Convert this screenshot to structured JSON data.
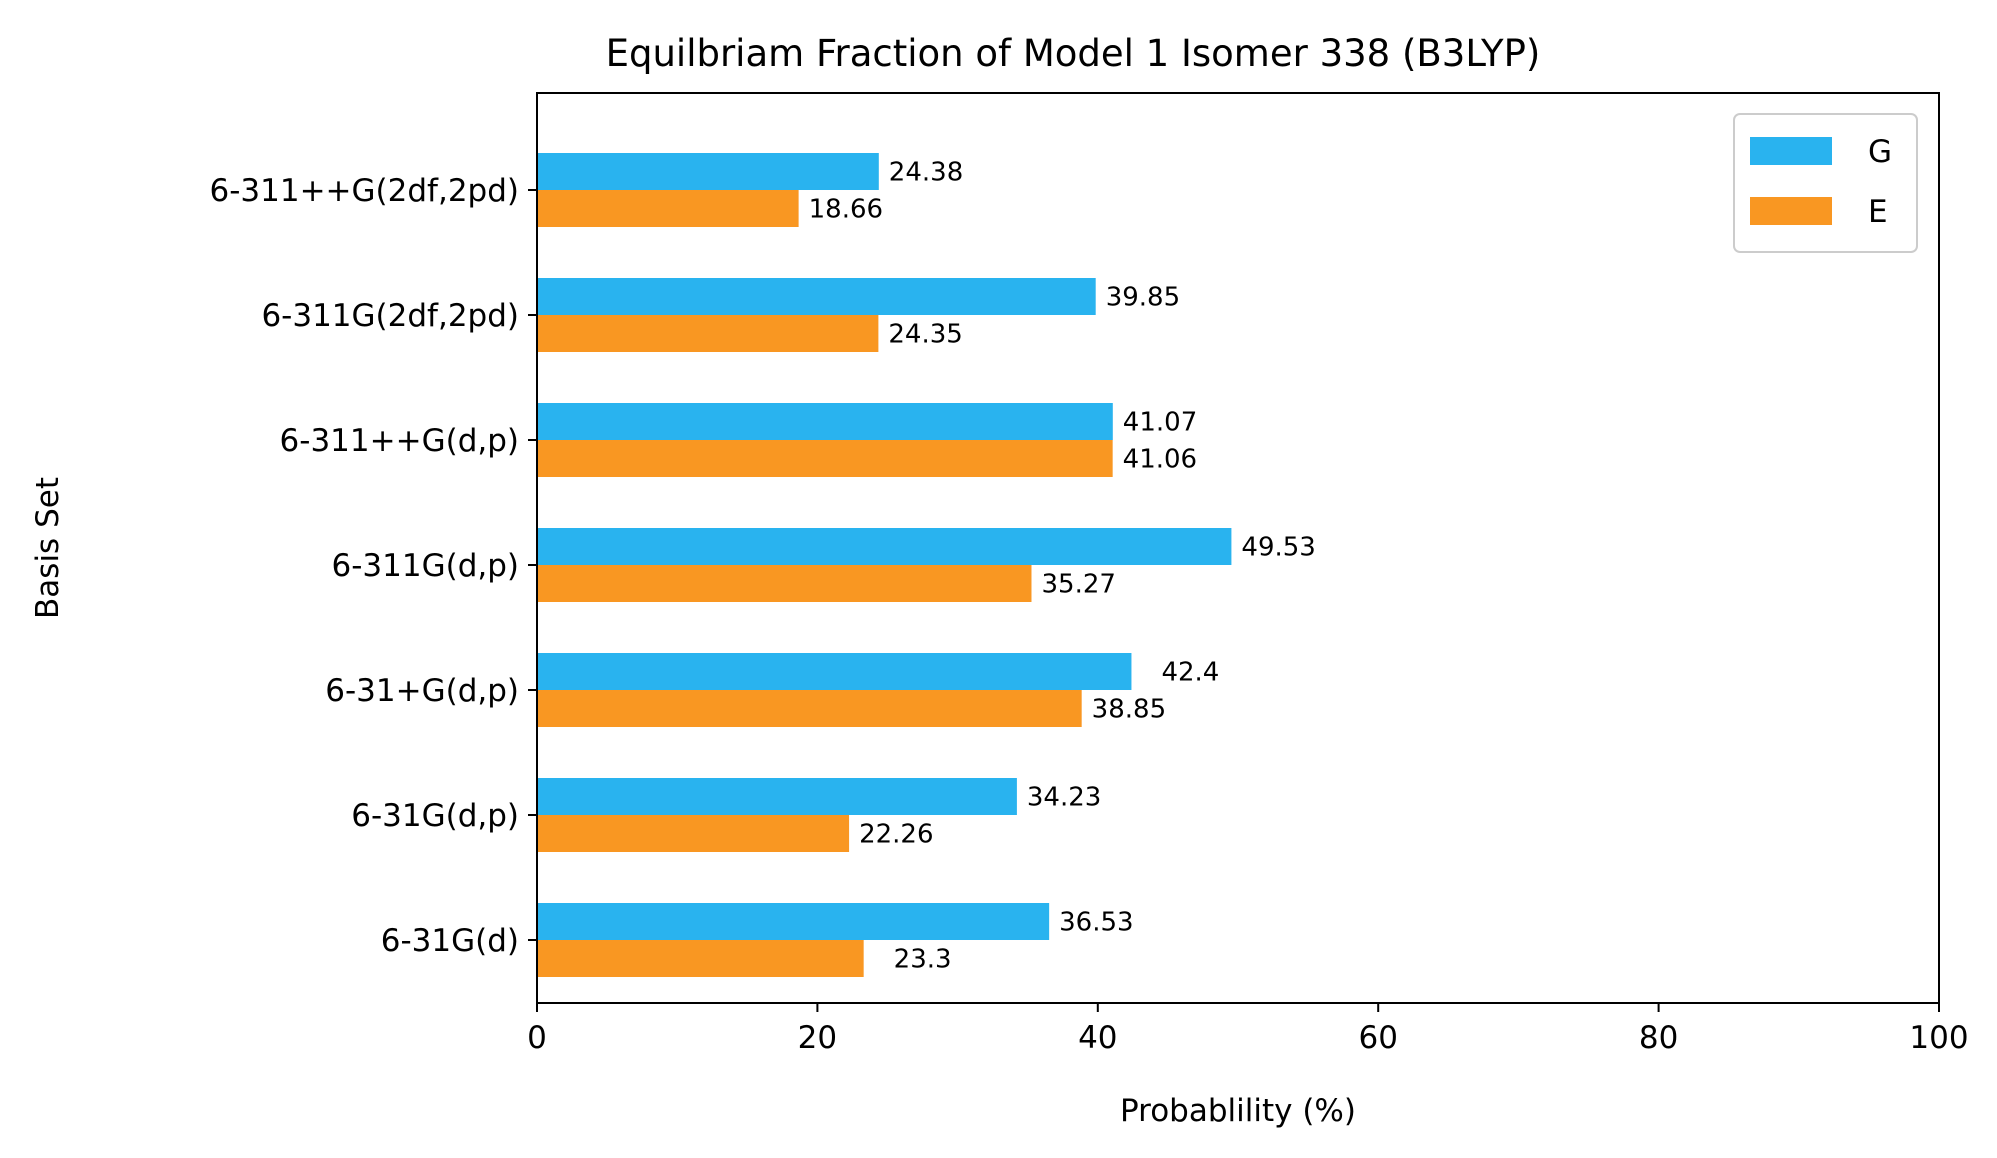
{
  "chart_data": {
    "type": "bar",
    "orientation": "horizontal",
    "title": "Equilbriam Fraction of Model 1 Isomer 338 (B3LYP)",
    "xlabel": "Probablility (%)",
    "ylabel": "Basis Set",
    "xlim": [
      0,
      100
    ],
    "xticks": [
      "0",
      "20",
      "40",
      "60",
      "80",
      "100"
    ],
    "categories": [
      "6-311++G(2df,2pd)",
      "6-311G(2df,2pd)",
      "6-311++G(d,p)",
      "6-311G(d,p)",
      "6-31+G(d,p)",
      "6-31G(d,p)",
      "6-31G(d)"
    ],
    "series": [
      {
        "name": "G",
        "color": "#29B3EF",
        "values": [
          24.38,
          39.85,
          41.07,
          49.53,
          42.4,
          34.23,
          36.53
        ],
        "labels": [
          "24.38",
          "39.85",
          "41.07",
          "49.53",
          "42.4",
          "34.23",
          "36.53"
        ]
      },
      {
        "name": "E",
        "color": "#F99722",
        "values": [
          18.66,
          24.35,
          41.06,
          35.27,
          38.85,
          22.26,
          23.3
        ],
        "labels": [
          "18.66",
          "24.35",
          "41.06",
          "35.27",
          "38.85",
          "22.26",
          "23.3"
        ]
      }
    ],
    "grid": false,
    "legend_position": "top-right"
  }
}
